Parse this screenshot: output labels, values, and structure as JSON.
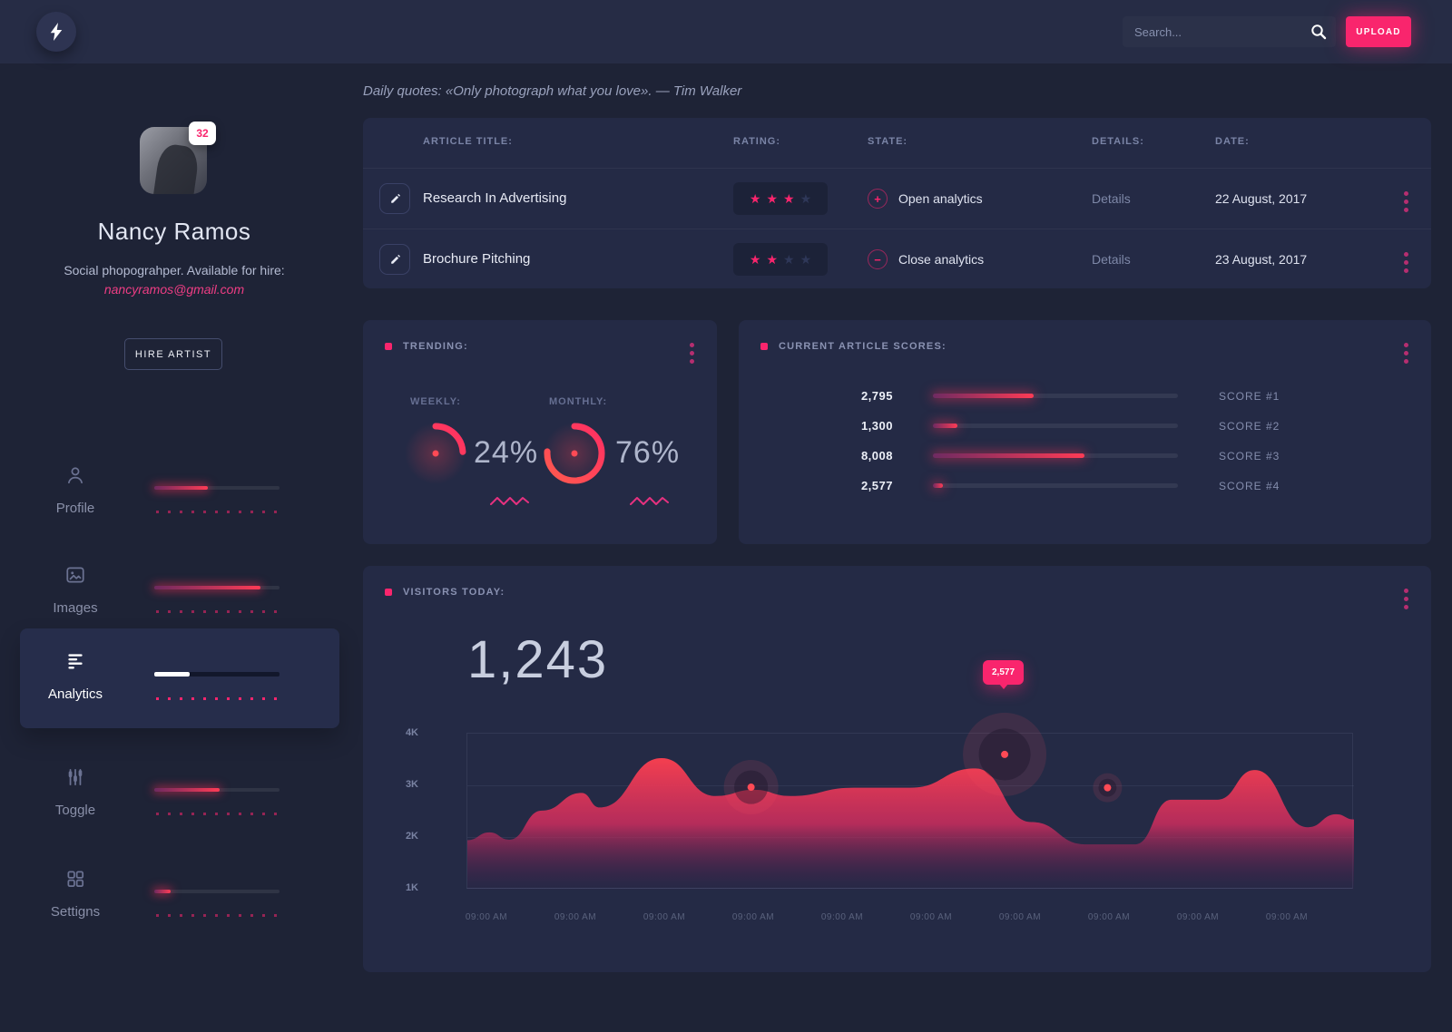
{
  "colors": {
    "accent_pink": "#f9256d",
    "chart_red": "#ff3b55",
    "panel": "#242a45",
    "background": "#1e2336"
  },
  "icons": {
    "logo": "lightning-bolt",
    "search": "magnifier",
    "upload": "none",
    "nav": [
      "person",
      "picture",
      "left-aligned-bars",
      "sliders",
      "grid-squares"
    ],
    "row_action": "pencil",
    "row_menu": "kebab-vertical-dots",
    "state_open": "plus-circle",
    "state_close": "minus-circle"
  },
  "topbar": {
    "search_placeholder": "Search...",
    "upload_label": "UPLOAD"
  },
  "profile": {
    "badge": "32",
    "name": "Nancy Ramos",
    "bio": "Social phopograhper. Available for hire:",
    "email": "nancyramos@gmail.com",
    "hire_label": "HIRE ARTIST"
  },
  "sidebar": {
    "items": [
      {
        "label": "Profile",
        "progress": 43,
        "active": false
      },
      {
        "label": "Images",
        "progress": 85,
        "active": false
      },
      {
        "label": "Analytics",
        "progress": 28,
        "active": true
      },
      {
        "label": "Toggle",
        "progress": 52,
        "active": false
      },
      {
        "label": "Settigns",
        "progress": 13,
        "active": false
      }
    ]
  },
  "quote": "Daily quotes: «Only photograph what you love». — Tim Walker",
  "table": {
    "headers": [
      "ARTICLE TITLE:",
      "RATING:",
      "STATE:",
      "DETAILS:",
      "DATE:"
    ],
    "rows": [
      {
        "title": "Research In Advertising",
        "stars": 3,
        "stars_total": 4,
        "state_symbol": "+",
        "state": "Open analytics",
        "details": "Details",
        "date": "22 August, 2017"
      },
      {
        "title": "Brochure Pitching",
        "stars": 2,
        "stars_total": 4,
        "state_symbol": "−",
        "state": "Close analytics",
        "details": "Details",
        "date": "23 August, 2017"
      }
    ]
  },
  "trending": {
    "title": "TRENDING:",
    "weekly_label": "WEEKLY:",
    "weekly_value": "24%",
    "monthly_label": "MONTHLY:",
    "monthly_value": "76%"
  },
  "scores": {
    "title": "CURRENT ARTICLE SCORES:",
    "rows": [
      {
        "value": "2,795",
        "pct": 41,
        "label": "SCORE #1"
      },
      {
        "value": "1,300",
        "pct": 10,
        "label": "SCORE #2"
      },
      {
        "value": "8,008",
        "pct": 62,
        "label": "SCORE #3"
      },
      {
        "value": "2,577",
        "pct": 4,
        "label": "SCORE #4"
      }
    ]
  },
  "visitors": {
    "title": "VISITORS TODAY:",
    "big_number": "1,243"
  },
  "chart_data": {
    "trending_donuts": {
      "type": "pie",
      "series": [
        {
          "name": "WEEKLY",
          "pct": 24
        },
        {
          "name": "MONTHLY",
          "pct": 76
        }
      ]
    },
    "scores_bars": {
      "type": "bar",
      "categories": [
        "SCORE #1",
        "SCORE #2",
        "SCORE #3",
        "SCORE #4"
      ],
      "values": [
        2795,
        1300,
        8008,
        2577
      ]
    },
    "visitors": {
      "type": "area",
      "title": "VISITORS TODAY:",
      "ylim": [
        1,
        4
      ],
      "y_ticks": [
        "4K",
        "3K",
        "2K",
        "1K"
      ],
      "x_ticks": [
        "09:00 AM",
        "09:00 AM",
        "09:00 AM",
        "09:00 AM",
        "09:00 AM",
        "09:00 AM",
        "09:00 AM",
        "09:00 AM",
        "09:00 AM",
        "09:00 AM"
      ],
      "points": [
        [
          0,
          1.95
        ],
        [
          0.025,
          2.1
        ],
        [
          0.047,
          1.96
        ],
        [
          0.084,
          2.52
        ],
        [
          0.129,
          2.86
        ],
        [
          0.149,
          2.58
        ],
        [
          0.219,
          3.53
        ],
        [
          0.28,
          2.8
        ],
        [
          0.323,
          2.92
        ],
        [
          0.364,
          2.8
        ],
        [
          0.436,
          2.96
        ],
        [
          0.5,
          2.96
        ],
        [
          0.573,
          3.33
        ],
        [
          0.636,
          2.3
        ],
        [
          0.697,
          1.87
        ],
        [
          0.753,
          1.87
        ],
        [
          0.794,
          2.73
        ],
        [
          0.846,
          2.73
        ],
        [
          0.888,
          3.3
        ],
        [
          0.948,
          2.2
        ],
        [
          0.98,
          2.45
        ],
        [
          1,
          2.35
        ]
      ],
      "markers": [
        {
          "fx": 0.32,
          "v": 2.97,
          "halo": 30,
          "tooltip": null
        },
        {
          "fx": 0.606,
          "v": 3.6,
          "halo": 46,
          "tooltip": "2,577"
        },
        {
          "fx": 0.722,
          "v": 2.96,
          "halo": 16,
          "tooltip": null
        }
      ]
    }
  }
}
